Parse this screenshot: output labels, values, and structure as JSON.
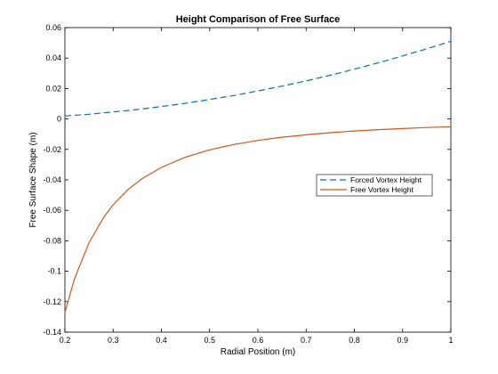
{
  "chart_data": {
    "type": "line",
    "title": "Height Comparison of Free Surface",
    "xlabel": "Radial Position (m)",
    "ylabel": "Free Surface Shape (m)",
    "xlim": [
      0.2,
      1
    ],
    "ylim": [
      -0.14,
      0.06
    ],
    "xticks": [
      "0.2",
      "0.3",
      "0.4",
      "0.5",
      "0.6",
      "0.7",
      "0.8",
      "0.9",
      "1"
    ],
    "yticks": [
      "0.06",
      "0.04",
      "0.02",
      "0",
      "-0.02",
      "-0.04",
      "-0.06",
      "-0.08",
      "-0.1",
      "-0.12",
      "-0.14"
    ],
    "grid": false,
    "legend_position": "right-middle",
    "series": [
      {
        "name": "Forced Vortex Height",
        "color": "#0072BD",
        "style": "dashed",
        "x": [
          0.2,
          0.25,
          0.3,
          0.35,
          0.4,
          0.45,
          0.5,
          0.55,
          0.6,
          0.65,
          0.7,
          0.75,
          0.8,
          0.85,
          0.9,
          0.95,
          1.0
        ],
        "y": [
          0.002,
          0.0031,
          0.0046,
          0.0062,
          0.0082,
          0.0103,
          0.0128,
          0.0154,
          0.0184,
          0.0216,
          0.025,
          0.0287,
          0.0327,
          0.0369,
          0.0414,
          0.0461,
          0.051
        ]
      },
      {
        "name": "Free Vortex Height",
        "color": "#D95319",
        "style": "solid",
        "x": [
          0.2,
          0.22,
          0.25,
          0.28,
          0.3,
          0.33,
          0.36,
          0.4,
          0.45,
          0.5,
          0.55,
          0.6,
          0.65,
          0.7,
          0.75,
          0.8,
          0.85,
          0.9,
          0.95,
          1.0
        ],
        "y": [
          -0.127,
          -0.105,
          -0.0813,
          -0.0648,
          -0.0564,
          -0.0466,
          -0.0392,
          -0.0318,
          -0.0251,
          -0.0203,
          -0.0168,
          -0.0141,
          -0.012,
          -0.0104,
          -0.009,
          -0.0079,
          -0.007,
          -0.0063,
          -0.0056,
          -0.0051
        ]
      }
    ]
  }
}
